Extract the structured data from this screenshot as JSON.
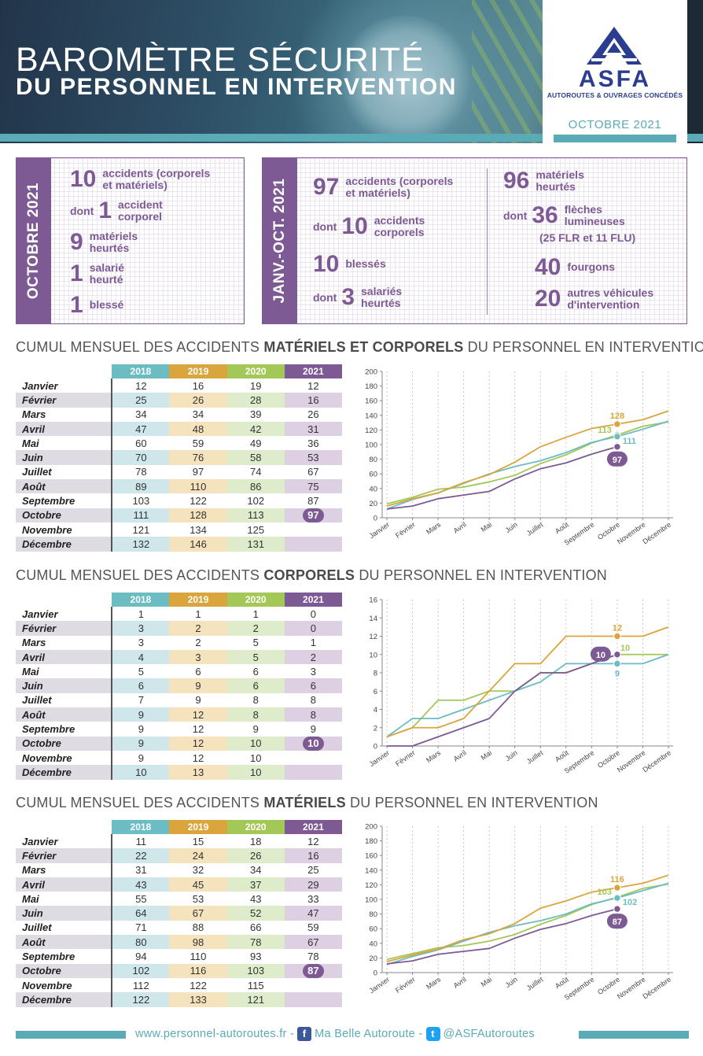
{
  "header": {
    "title_line1": "BAROMÈTRE SÉCURITÉ",
    "title_line2": "DU PERSONNEL EN INTERVENTION",
    "logo_text": "ASFA",
    "logo_subtitle": "AUTOROUTES & OUVRAGES CONCÉDÉS",
    "date": "OCTOBRE 2021"
  },
  "summary_oct": {
    "side_label": "OCTOBRE 2021",
    "items": [
      {
        "pre": "",
        "num": "10",
        "text": "accidents (corporels\net matériels)"
      },
      {
        "pre": "dont",
        "num": "1",
        "text": "accident\ncorporel"
      },
      {
        "pre": "",
        "num": "9",
        "text": "matériels\nheurtés"
      },
      {
        "pre": "",
        "num": "1",
        "text": "salarié\nheurté"
      },
      {
        "pre": "",
        "num": "1",
        "text": "blessé"
      }
    ]
  },
  "summary_ytd": {
    "side_label": "JANV.-OCT. 2021",
    "left": [
      {
        "pre": "",
        "num": "97",
        "text": "accidents (corporels\net matériels)"
      },
      {
        "pre": "dont",
        "num": "10",
        "text": "accidents\ncorporels"
      },
      {
        "pre": "",
        "num": "10",
        "text": "blessés"
      },
      {
        "pre": "dont",
        "num": "3",
        "text": "salariés\nheurtés"
      }
    ],
    "right": [
      {
        "pre": "",
        "num": "96",
        "text": "matériels\nheurtés"
      },
      {
        "pre": "dont",
        "num": "36",
        "text": "flèches\nlumineuses"
      },
      {
        "pre": "",
        "num": "",
        "text": "(25 FLR et 11 FLU)"
      },
      {
        "pre": "",
        "num": "40",
        "text": "fourgons"
      },
      {
        "pre": "",
        "num": "20",
        "text": "autres véhicules\nd'intervention"
      }
    ]
  },
  "colors": {
    "2018": "#6cbcc3",
    "2019": "#d9a53c",
    "2020": "#a4c858",
    "2021": "#7d5a93",
    "bg2018": "#cfe7ea",
    "bg2019": "#f5e3bd",
    "bg2020": "#dfeccb",
    "bg2021": "#ddd0e3",
    "bgMonth": "#dedbe3"
  },
  "months": [
    "Janvier",
    "Février",
    "Mars",
    "Avril",
    "Mai",
    "Juin",
    "Juillet",
    "Août",
    "Septembre",
    "Octobre",
    "Novembre",
    "Décembre"
  ],
  "years": [
    "2018",
    "2019",
    "2020",
    "2021"
  ],
  "sections": [
    {
      "title_pre": "CUMUL MENSUEL DES ACCIDENTS ",
      "title_bold": "MATÉRIELS ET CORPORELS",
      "title_post": " DU PERSONNEL EN INTERVENTION"
    },
    {
      "title_pre": "CUMUL MENSUEL DES ACCIDENTS ",
      "title_bold": "CORPORELS",
      "title_post": " DU PERSONNEL EN INTERVENTION"
    },
    {
      "title_pre": "CUMUL MENSUEL DES ACCIDENTS ",
      "title_bold": "MATÉRIELS",
      "title_post": " DU PERSONNEL EN INTERVENTION"
    }
  ],
  "chart_data": [
    {
      "type": "line",
      "x": [
        "Janvier",
        "Février",
        "Mars",
        "Avril",
        "Mai",
        "Juin",
        "Juillet",
        "Août",
        "Septembre",
        "Octobre",
        "Novembre",
        "Décembre"
      ],
      "ylim": [
        0,
        200
      ],
      "yticks": [
        0,
        20,
        40,
        60,
        80,
        100,
        120,
        140,
        160,
        180,
        200
      ],
      "series": [
        {
          "name": "2018",
          "values": [
            12,
            25,
            34,
            47,
            60,
            70,
            78,
            89,
            103,
            111,
            121,
            132
          ]
        },
        {
          "name": "2019",
          "values": [
            16,
            26,
            34,
            48,
            59,
            76,
            97,
            110,
            122,
            128,
            134,
            146
          ]
        },
        {
          "name": "2020",
          "values": [
            19,
            28,
            39,
            42,
            49,
            58,
            74,
            86,
            102,
            113,
            125,
            131
          ]
        },
        {
          "name": "2021",
          "values": [
            12,
            16,
            26,
            31,
            36,
            53,
            67,
            75,
            87,
            97,
            null,
            null
          ]
        }
      ],
      "annotations": {
        "2019": "128",
        "2020": "113",
        "2018": "111",
        "2021": "97"
      }
    },
    {
      "type": "line",
      "x": [
        "Janvier",
        "Février",
        "Mars",
        "Avril",
        "Mai",
        "Juin",
        "Juillet",
        "Août",
        "Septembre",
        "Octobre",
        "Novembre",
        "Décembre"
      ],
      "ylim": [
        0,
        16
      ],
      "yticks": [
        0,
        2,
        4,
        6,
        8,
        10,
        12,
        14,
        16
      ],
      "series": [
        {
          "name": "2018",
          "values": [
            1,
            3,
            3,
            4,
            5,
            6,
            7,
            9,
            9,
            9,
            9,
            10
          ]
        },
        {
          "name": "2019",
          "values": [
            1,
            2,
            2,
            3,
            6,
            9,
            9,
            12,
            12,
            12,
            12,
            13
          ]
        },
        {
          "name": "2020",
          "values": [
            1,
            2,
            5,
            5,
            6,
            6,
            8,
            8,
            9,
            10,
            10,
            10
          ]
        },
        {
          "name": "2021",
          "values": [
            0,
            0,
            1,
            2,
            3,
            6,
            8,
            8,
            9,
            10,
            null,
            null
          ]
        }
      ],
      "annotations": {
        "2019": "12",
        "2020": "10",
        "2018": "9",
        "2021": "10"
      }
    },
    {
      "type": "line",
      "x": [
        "Janvier",
        "Février",
        "Mars",
        "Avril",
        "Mai",
        "Juin",
        "Juillet",
        "Août",
        "Septembre",
        "Octobre",
        "Novembre",
        "Décembre"
      ],
      "ylim": [
        0,
        200
      ],
      "yticks": [
        0,
        20,
        40,
        60,
        80,
        100,
        120,
        140,
        160,
        180,
        200
      ],
      "series": [
        {
          "name": "2018",
          "values": [
            11,
            22,
            31,
            43,
            55,
            64,
            71,
            80,
            94,
            102,
            112,
            122
          ]
        },
        {
          "name": "2019",
          "values": [
            15,
            24,
            32,
            45,
            53,
            67,
            88,
            98,
            110,
            116,
            122,
            133
          ]
        },
        {
          "name": "2020",
          "values": [
            18,
            26,
            34,
            37,
            43,
            52,
            66,
            78,
            93,
            103,
            115,
            121
          ]
        },
        {
          "name": "2021",
          "values": [
            12,
            16,
            25,
            29,
            33,
            47,
            59,
            67,
            78,
            87,
            null,
            null
          ]
        }
      ],
      "annotations": {
        "2019": "116",
        "2020": "103",
        "2018": "102",
        "2021": "87"
      }
    }
  ],
  "footer": {
    "website": "www.personnel-autoroutes.fr - ",
    "facebook_icon": "f",
    "facebook": "Ma Belle Autoroute - ",
    "twitter_icon": "t",
    "twitter": "@ASFAutoroutes"
  }
}
